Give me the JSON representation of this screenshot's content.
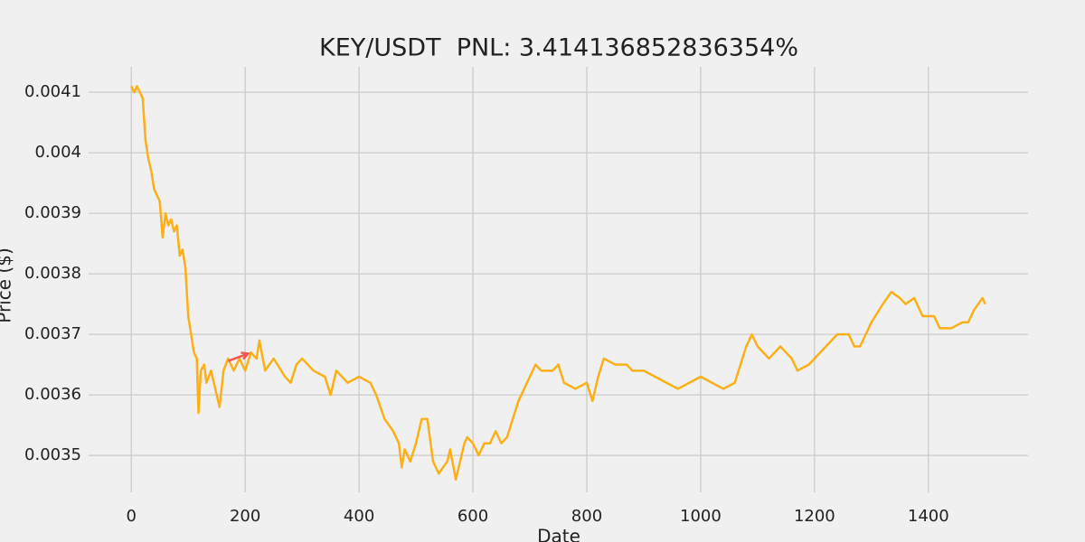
{
  "chart_data": {
    "type": "line",
    "title": "KEY/USDT  PNL: 3.414136852836354%",
    "x_label": "Date",
    "y_label": "Price ($)",
    "x": [
      0,
      5,
      10,
      20,
      25,
      30,
      35,
      40,
      45,
      50,
      55,
      60,
      65,
      70,
      75,
      80,
      85,
      90,
      95,
      100,
      105,
      110,
      115,
      118,
      122,
      128,
      132,
      140,
      150,
      155,
      162,
      170,
      180,
      190,
      200,
      210,
      220,
      225,
      235,
      250,
      270,
      280,
      290,
      300,
      320,
      340,
      350,
      360,
      380,
      400,
      420,
      430,
      445,
      460,
      470,
      475,
      480,
      490,
      500,
      510,
      520,
      530,
      540,
      555,
      560,
      570,
      575,
      585,
      590,
      600,
      610,
      620,
      630,
      640,
      650,
      660,
      670,
      680,
      690,
      700,
      710,
      720,
      740,
      750,
      760,
      780,
      800,
      810,
      820,
      830,
      850,
      870,
      880,
      900,
      920,
      940,
      960,
      980,
      1000,
      1020,
      1040,
      1060,
      1070,
      1080,
      1090,
      1100,
      1120,
      1140,
      1160,
      1170,
      1190,
      1200,
      1220,
      1240,
      1260,
      1270,
      1280,
      1300,
      1320,
      1335,
      1350,
      1360,
      1375,
      1390,
      1410,
      1420,
      1440,
      1460,
      1470,
      1480,
      1495,
      1500
    ],
    "series": [
      {
        "color": "#fcaf17",
        "values": [
          0.00411,
          0.0041,
          0.00411,
          0.00409,
          0.00402,
          0.00399,
          0.00397,
          0.00394,
          0.00393,
          0.00392,
          0.00386,
          0.0039,
          0.00388,
          0.00389,
          0.00387,
          0.00388,
          0.00383,
          0.00384,
          0.00381,
          0.00373,
          0.0037,
          0.00367,
          0.00366,
          0.00357,
          0.00364,
          0.00365,
          0.00362,
          0.00364,
          0.0036,
          0.00358,
          0.00364,
          0.00366,
          0.00364,
          0.00366,
          0.00364,
          0.00367,
          0.00366,
          0.00369,
          0.00364,
          0.00366,
          0.00363,
          0.00362,
          0.00365,
          0.00366,
          0.00364,
          0.00363,
          0.0036,
          0.00364,
          0.00362,
          0.00363,
          0.00362,
          0.0036,
          0.00356,
          0.00354,
          0.00352,
          0.00348,
          0.00351,
          0.00349,
          0.00352,
          0.00356,
          0.00356,
          0.00349,
          0.00347,
          0.00349,
          0.00351,
          0.00346,
          0.00348,
          0.00352,
          0.00353,
          0.00352,
          0.0035,
          0.00352,
          0.00352,
          0.00354,
          0.00352,
          0.00353,
          0.00356,
          0.00359,
          0.00361,
          0.00363,
          0.00365,
          0.00364,
          0.00364,
          0.00365,
          0.00362,
          0.00361,
          0.00362,
          0.00359,
          0.00363,
          0.00366,
          0.00365,
          0.00365,
          0.00364,
          0.00364,
          0.00363,
          0.00362,
          0.00361,
          0.00362,
          0.00363,
          0.00362,
          0.00361,
          0.00362,
          0.00365,
          0.00368,
          0.0037,
          0.00368,
          0.00366,
          0.00368,
          0.00366,
          0.00364,
          0.00365,
          0.00366,
          0.00368,
          0.0037,
          0.0037,
          0.00368,
          0.00368,
          0.00372,
          0.00375,
          0.00377,
          0.00376,
          0.00375,
          0.00376,
          0.00373,
          0.00373,
          0.00371,
          0.00371,
          0.00372,
          0.00372,
          0.00374,
          0.00376,
          0.00375
        ]
      }
    ],
    "arrow": {
      "x": [
        170,
        205
      ],
      "values": [
        0.003656,
        0.003668
      ],
      "color": "#f05a4f"
    },
    "xlim": [
      -75,
      1575
    ],
    "ylim": [
      0.003439,
      0.004142
    ],
    "xticks": [
      0,
      200,
      400,
      600,
      800,
      1000,
      1200,
      1400
    ],
    "yticks": [
      0.0035,
      0.0036,
      0.0037,
      0.0038,
      0.0039,
      0.004,
      0.0041
    ],
    "grid": true
  }
}
